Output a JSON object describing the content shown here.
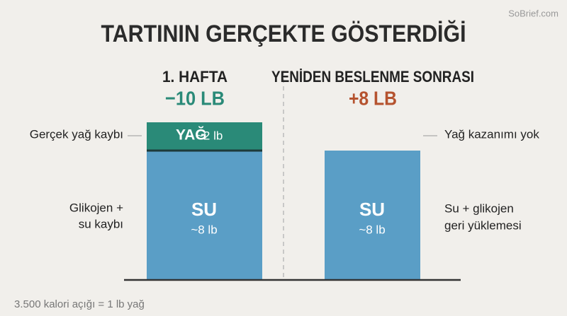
{
  "watermark": "SoBrief.com",
  "title": "TARTININ GERÇEKTE GÖSTERDİĞİ",
  "columns": [
    {
      "heading": "1. HAFTA",
      "change": "−10 LB",
      "segments": [
        {
          "name": "YAĞ",
          "amount": "~2 lb"
        },
        {
          "name": "SU",
          "amount": "~8 lb"
        }
      ],
      "notes": [
        [
          "Gerçek yağ kaybı"
        ],
        [
          "Glikojen +",
          "su kaybı"
        ]
      ]
    },
    {
      "heading": "YENİDEN BESLENME SONRASI",
      "change": "+8 LB",
      "segments": [
        {
          "name": "SU",
          "amount": "~8 lb"
        }
      ],
      "notes": [
        [
          "Yağ kazanımı yok"
        ],
        [
          "Su + glikojen",
          "geri yüklemesi"
        ]
      ]
    }
  ],
  "footnote": "3.500 kalori açığı = 1 lb yağ"
}
